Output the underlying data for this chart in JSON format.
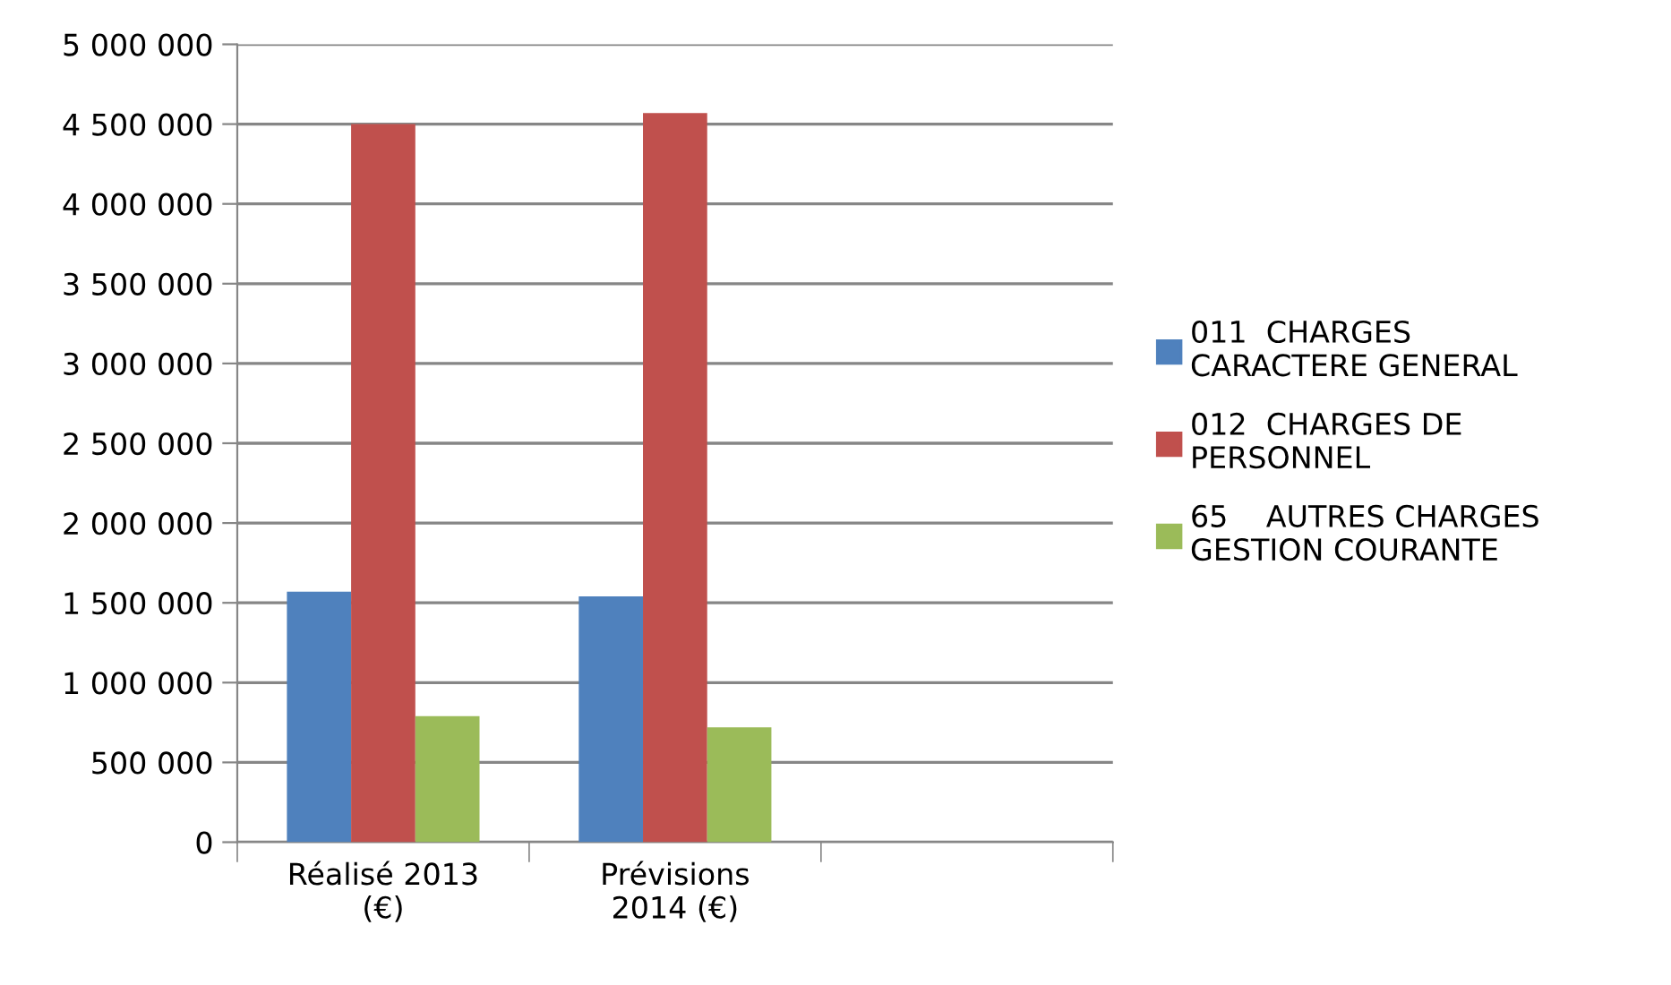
{
  "chart_data": {
    "type": "bar",
    "categories": [
      "Réalisé 2013\n(€)",
      "Prévisions\n2014 (€)",
      null
    ],
    "series": [
      {
        "name": "011  CHARGES\nCARACTERE GENERAL",
        "color": "#4f81bd",
        "values": [
          1570000,
          1540000,
          null
        ]
      },
      {
        "name": "012  CHARGES DE\nPERSONNEL",
        "color": "#c0504d",
        "values": [
          4500000,
          4570000,
          null
        ]
      },
      {
        "name": "65    AUTRES CHARGES\nGESTION COURANTE",
        "color": "#9bbb59",
        "values": [
          790000,
          720000,
          null
        ]
      }
    ],
    "ylim": [
      0,
      5000000
    ],
    "yticks": [
      {
        "value": 0,
        "label": "0"
      },
      {
        "value": 500000,
        "label": "500 000"
      },
      {
        "value": 1000000,
        "label": "1 000 000"
      },
      {
        "value": 1500000,
        "label": "1 500 000"
      },
      {
        "value": 2000000,
        "label": "2 000 000"
      },
      {
        "value": 2500000,
        "label": "2 500 000"
      },
      {
        "value": 3000000,
        "label": "3 000 000"
      },
      {
        "value": 3500000,
        "label": "3 500 000"
      },
      {
        "value": 4000000,
        "label": "4 000 000"
      },
      {
        "value": 4500000,
        "label": "4 500 000"
      },
      {
        "value": 5000000,
        "label": "5 000 000"
      }
    ],
    "grid": "y",
    "legend": "right"
  }
}
